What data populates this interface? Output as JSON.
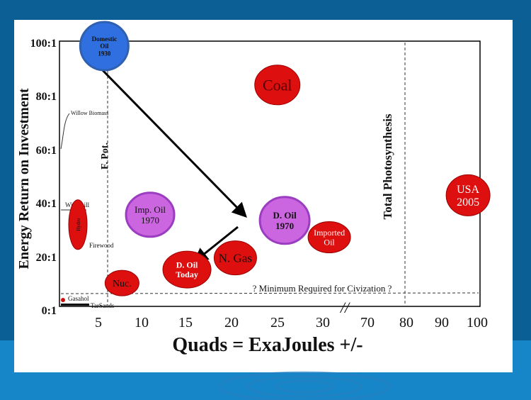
{
  "colors": {
    "background": "#0a5f95",
    "slide": "#ffffff",
    "red_bubble": "#dd0f0f",
    "purple_bubble": "#cc66e0",
    "blue_bubble": "#2f6fe0",
    "text_red": "#5a0000"
  },
  "chart_data": {
    "type": "bubble",
    "title": "",
    "xlabel": "Quads = ExaJoules +/-",
    "ylabel": "Energy Return on Investment",
    "x_axis_note": "broken axis: 0–30 linear, then 70–100",
    "x_ticks": [
      "5",
      "10",
      "15",
      "20",
      "25",
      "30",
      "70",
      "80",
      "90",
      "100"
    ],
    "y_ticks": [
      "0:1",
      "20:1",
      "40:1",
      "60:1",
      "80:1",
      "100:1"
    ],
    "ylim": [
      0,
      100
    ],
    "bubbles": [
      {
        "label": "Domestic Oil 1930",
        "lines": [
          "Domestic",
          "Oil",
          "1930"
        ],
        "x": 5,
        "y": 100,
        "color": "blue"
      },
      {
        "label": "Coal",
        "lines": [
          "Coal"
        ],
        "x": 22,
        "y": 80,
        "color": "red"
      },
      {
        "label": "USA 2005",
        "lines": [
          "USA",
          "2005"
        ],
        "x": 100,
        "y": 40,
        "color": "red"
      },
      {
        "label": "D. Oil 1970",
        "lines": [
          "D. Oil",
          "1970"
        ],
        "x": 24,
        "y": 30,
        "color": "purple"
      },
      {
        "label": "Imported Oil",
        "lines": [
          "Imported",
          "Oil"
        ],
        "x": 27,
        "y": 25,
        "color": "red"
      },
      {
        "label": "Imp. Oil 1970",
        "lines": [
          "Imp. Oil",
          "1970"
        ],
        "x": 9,
        "y": 30,
        "color": "purple"
      },
      {
        "label": "N. Gas",
        "lines": [
          "N. Gas"
        ],
        "x": 20,
        "y": 18,
        "color": "red"
      },
      {
        "label": "D. Oil Today",
        "lines": [
          "D. Oil",
          "Today"
        ],
        "x": 15,
        "y": 12,
        "color": "red"
      },
      {
        "label": "Nuc.",
        "lines": [
          "Nuc."
        ],
        "x": 8,
        "y": 8,
        "color": "red"
      },
      {
        "label": "Hydro",
        "lines": [
          "Hydro"
        ],
        "x": 3,
        "y": 30,
        "color": "red"
      }
    ],
    "annotations": {
      "willow_biomass": "Willow Biomass",
      "windmill": "Windmill",
      "firewood": "Firewood",
      "gasahol": "Gasahol",
      "tar_sands": "TarSands",
      "f_pot": "F. Pot.",
      "total_photosynthesis": "Total Photosynthesis",
      "minimum": "? Minimum Required for Civization ?",
      "break_mark": "//"
    },
    "minimum_y": 6,
    "arrows": [
      {
        "from": "Domestic Oil 1930",
        "to": "D. Oil 1970"
      },
      {
        "from": "D. Oil 1970",
        "to": "D. Oil Today"
      }
    ]
  }
}
